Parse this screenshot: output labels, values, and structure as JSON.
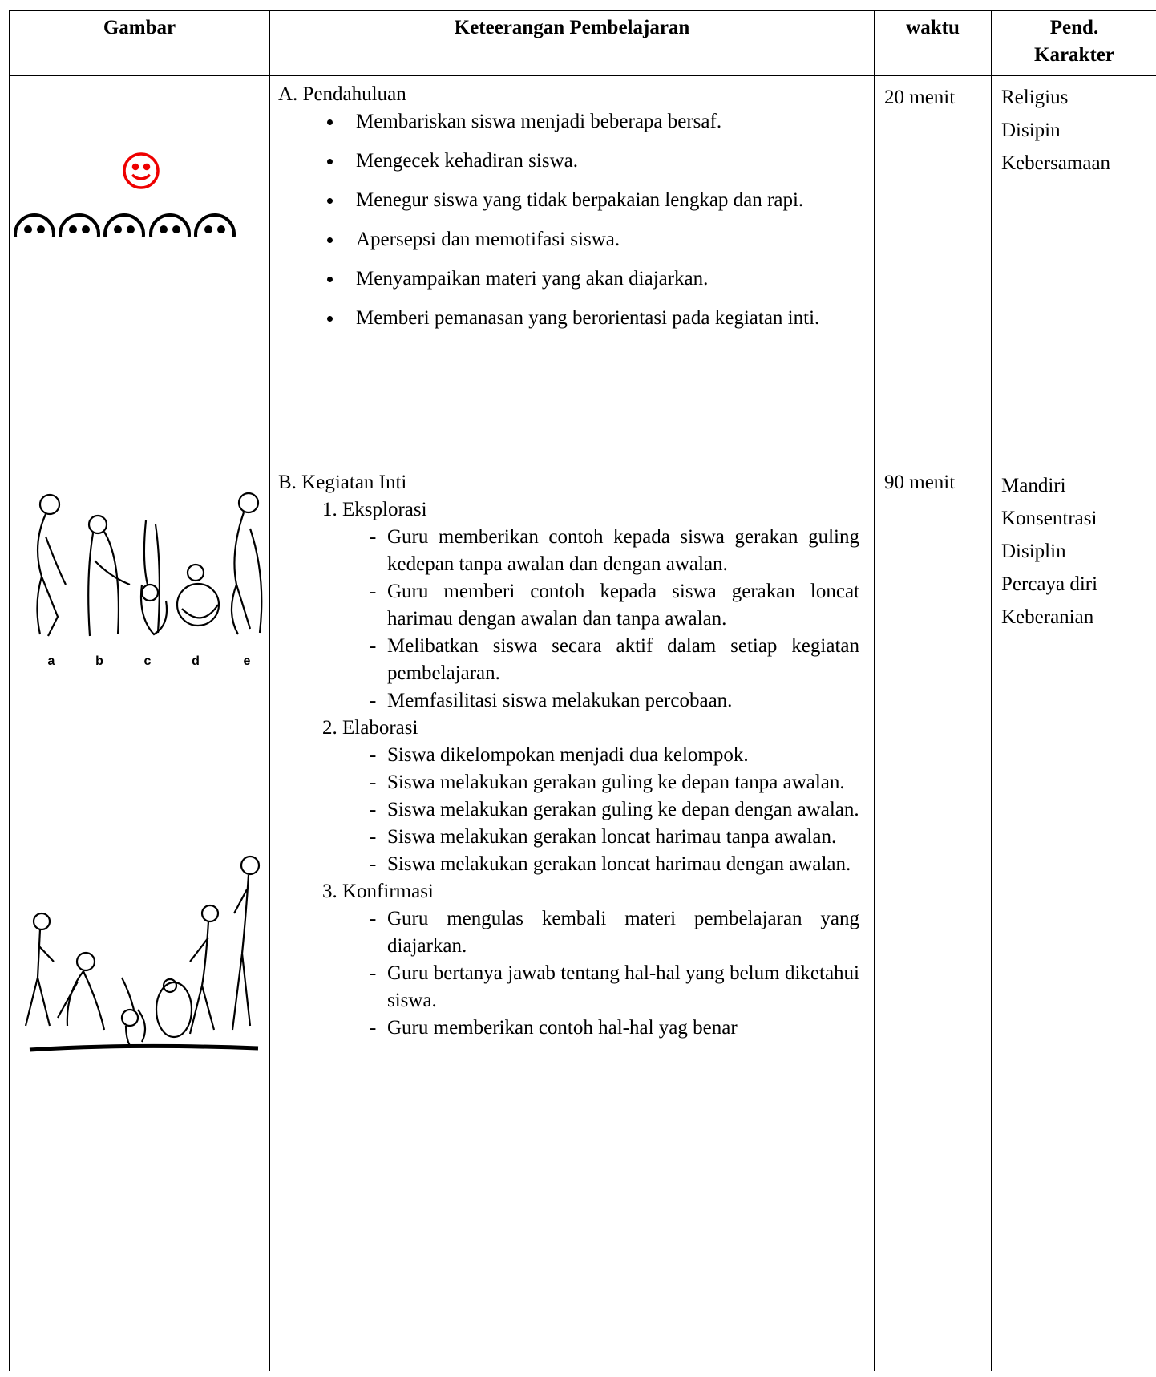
{
  "table": {
    "headers": [
      [
        "Gambar"
      ],
      [
        "Keteerangan Pembelajaran"
      ],
      [
        "waktu"
      ],
      [
        "Pend.",
        "Karakter"
      ]
    ],
    "rows": [
      {
        "section": "A. Pendahuluan",
        "bullets": [
          "Membariskan siswa menjadi beberapa bersaf.",
          "Mengecek kehadiran siswa.",
          "Menegur siswa yang tidak berpakaian lengkap dan rapi.",
          "Apersepsi dan memotifasi siswa.",
          "Menyampaikan materi yang akan diajarkan.",
          "Memberi pemanasan yang berorientasi pada kegiatan inti."
        ],
        "time": "20 menit",
        "karakter": [
          "Religius",
          "Disipin",
          "Kebersamaan"
        ]
      },
      {
        "section": "B. Kegiatan Inti",
        "groups": [
          {
            "title": "1. Eksplorasi",
            "items": [
              "Guru memberikan contoh kepada siswa gerakan guling kedepan tanpa awalan dan dengan awalan.",
              "Guru memberi contoh kepada siswa gerakan loncat harimau dengan awalan dan tanpa awalan.",
              "Melibatkan siswa secara aktif dalam setiap kegiatan pembelajaran.",
              "Memfasilitasi siswa melakukan percobaan."
            ]
          },
          {
            "title": "2. Elaborasi",
            "items": [
              "Siswa dikelompokan menjadi dua kelompok.",
              "Siswa melakukan gerakan guling ke depan tanpa awalan.",
              "Siswa melakukan gerakan guling ke depan dengan awalan.",
              "Siswa melakukan gerakan loncat harimau tanpa awalan.",
              "Siswa melakukan gerakan loncat harimau dengan awalan."
            ]
          },
          {
            "title": "3. Konfirmasi",
            "items": [
              "Guru mengulas kembali materi pembelajaran yang diajarkan.",
              "Guru bertanya jawab tentang hal-hal yang belum diketahui siswa.",
              "Guru memberikan contoh hal-hal yag benar"
            ]
          }
        ],
        "time": "90 menit",
        "karakter": [
          "Mandiri",
          "Konsentrasi",
          "Disiplin",
          "Percaya diri",
          "Keberanian"
        ],
        "figure_labels": [
          "a",
          "b",
          "c",
          "d",
          "e"
        ]
      }
    ]
  }
}
